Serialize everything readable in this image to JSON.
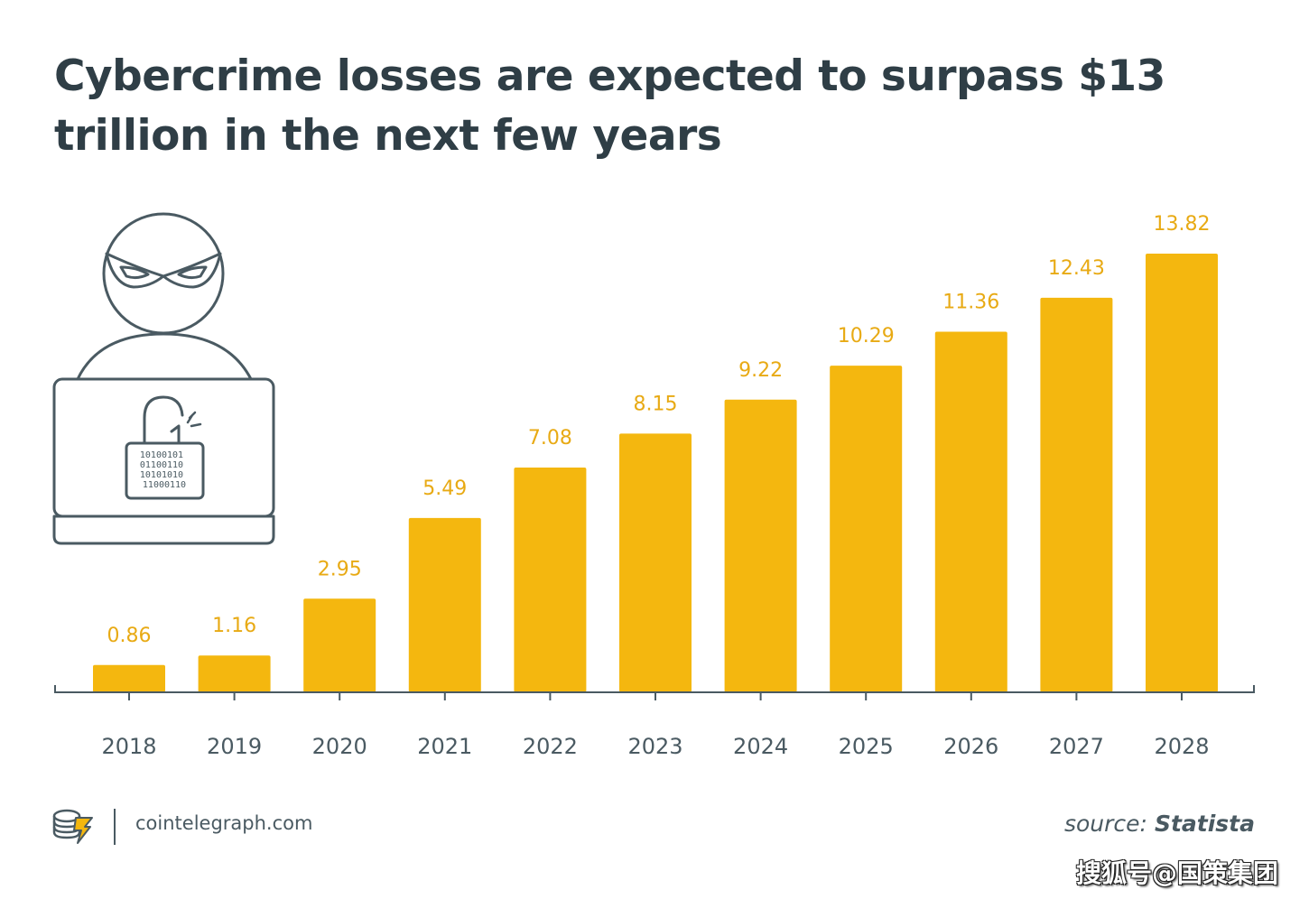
{
  "header": {
    "title": "Cybercrime losses are expected to surpass $13 trillion in the next few years"
  },
  "chart_data": {
    "type": "bar",
    "categories": [
      "2018",
      "2019",
      "2020",
      "2021",
      "2022",
      "2023",
      "2024",
      "2025",
      "2026",
      "2027",
      "2028"
    ],
    "values": [
      0.86,
      1.16,
      2.95,
      5.49,
      7.08,
      8.15,
      9.22,
      10.29,
      11.36,
      12.43,
      13.82
    ],
    "value_labels": [
      "0.86",
      "1.16",
      "2.95",
      "5.49",
      "7.08",
      "8.15",
      "9.22",
      "10.29",
      "11.36",
      "12.43",
      "13.82"
    ],
    "ylim": [
      0,
      13.82
    ],
    "grid": false,
    "colors": {
      "bar": "#f4b70f",
      "label": "#e8aa14",
      "axis": "#4a5a62",
      "tick_label": "#4a5a62"
    }
  },
  "illustration": {
    "icon": "hacker-with-laptop-icon",
    "stroke": "#4a5a62"
  },
  "footer": {
    "site": "cointelegraph.com",
    "logo_icon": "cointelegraph-logo-icon",
    "source_prefix": "source: ",
    "source_name": "Statista"
  },
  "watermark": {
    "text": "搜狐号@国策集团"
  }
}
